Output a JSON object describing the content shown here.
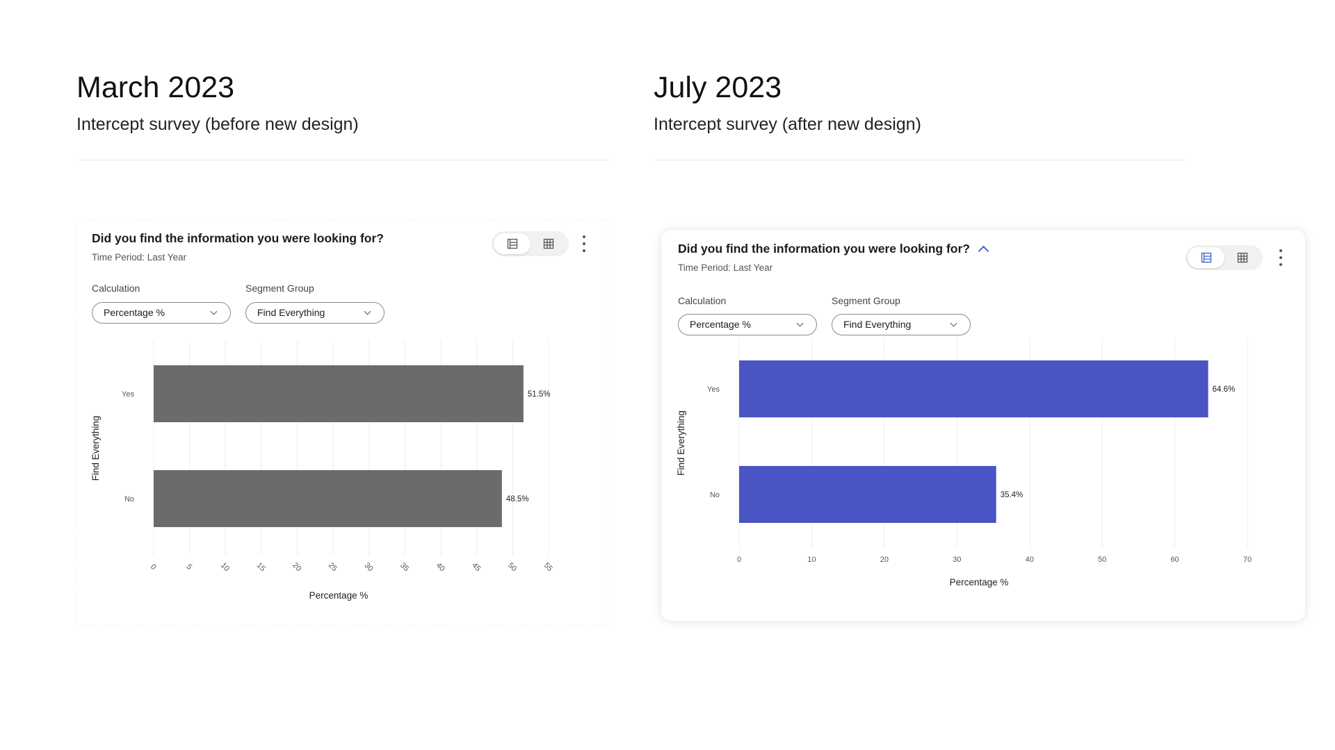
{
  "panels": [
    {
      "id": "old",
      "heading": "March 2023",
      "subheading": "Intercept survey (before new design)",
      "card": {
        "question": "Did you find the information you were looking for?",
        "time_period": "Time Period: Last Year",
        "calculation_label": "Calculation",
        "calculation_value": "Percentage %",
        "segment_label": "Segment Group",
        "segment_value": "Find Everything",
        "view_toggle": {
          "active": "chart-view-icon",
          "options": [
            "chart-view-icon",
            "table-view-icon"
          ]
        },
        "menu_icon": "more-vertical-icon"
      }
    },
    {
      "id": "new",
      "heading": "July 2023",
      "subheading": "Intercept survey (after new design)",
      "card": {
        "question": "Did you find the information you were looking for?",
        "question_icon": "chevron-up-icon",
        "time_period": "Time Period: Last Year",
        "calculation_label": "Calculation",
        "calculation_value": "Percentage %",
        "segment_label": "Segment Group",
        "segment_value": "Find Everything",
        "view_toggle": {
          "active": "chart-view-icon",
          "options": [
            "chart-view-icon",
            "table-view-icon"
          ]
        },
        "menu_icon": "more-vertical-icon"
      }
    }
  ],
  "colors": {
    "old_bar": "#6b6b6b",
    "new_bar": "#4b54c4",
    "accent": "#3d63c9"
  },
  "chart_data": [
    {
      "type": "bar",
      "orientation": "horizontal",
      "categories": [
        "Yes",
        "No"
      ],
      "values": [
        51.5,
        48.5
      ],
      "data_labels": [
        "51.5%",
        "48.5%"
      ],
      "xlabel": "Percentage %",
      "ylabel": "Find Everything",
      "xlim": [
        0,
        55
      ],
      "xticks": [
        0,
        5,
        10,
        15,
        20,
        25,
        30,
        35,
        40,
        45,
        50,
        55
      ],
      "tick_rotation": "rotated",
      "grid": "vertical",
      "color": "#6b6b6b"
    },
    {
      "type": "bar",
      "orientation": "horizontal",
      "categories": [
        "Yes",
        "No"
      ],
      "values": [
        64.6,
        35.4
      ],
      "data_labels": [
        "64.6%",
        "35.4%"
      ],
      "xlabel": "Percentage %",
      "ylabel": "Find Everything",
      "xlim": [
        0,
        70
      ],
      "xticks": [
        0,
        10,
        20,
        30,
        40,
        50,
        60,
        70
      ],
      "tick_rotation": "none",
      "grid": "vertical",
      "color": "#4b54c4"
    }
  ]
}
